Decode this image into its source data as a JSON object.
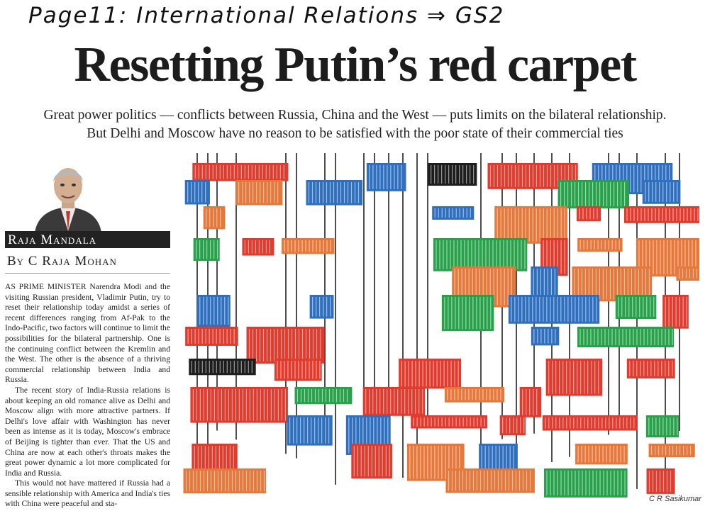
{
  "annotation": "Page11: International Relations ⇒ GS2",
  "headline": "Resetting Putin’s red carpet",
  "deck": {
    "line1": "Great power politics — conflicts between Russia, China and the West — puts limits on the bilateral relationship.",
    "line2": "But Delhi and Moscow have no reason to be satisfied with the poor state of their commercial ties"
  },
  "column": {
    "name": "Raja Mandala",
    "byline": "By C Raja Mohan"
  },
  "body": {
    "p1": "AS PRIME MINISTER Narendra Modi and the visiting Russian president, Vladimir Putin, try to reset their relationship today amidst a series of recent differences ranging from Af-Pak to the Indo-Pacific, two factors will continue to limit the possibilities for the bilateral partnership. One is the continuing conflict between the Kremlin and the West. The other is the absence of a thriving commercial relationship between India and Russia.",
    "p2": "The recent story of India-Russia relations is about keeping an old romance alive as Delhi and Moscow align with more attractive partners. If Delhi's love affair with Washington has never been as intense as it is today, Moscow's embrace of Beijing is tighter than ever. That the US and China are now at each other's throats makes the great power dynamic a lot more complicated for India and Russia.",
    "p3": "This would not have mattered if Russia had a sensible relationship with America and India's ties with China were peaceful and sta-"
  },
  "illustration": {
    "subject": "shipping-containers-collage",
    "credit": "C R Sasikumar"
  },
  "colors": {
    "red": "#e23a2c",
    "blue": "#2f6fbf",
    "green": "#27a24a",
    "orange": "#e8773a",
    "dark": "#1d1d1d"
  }
}
